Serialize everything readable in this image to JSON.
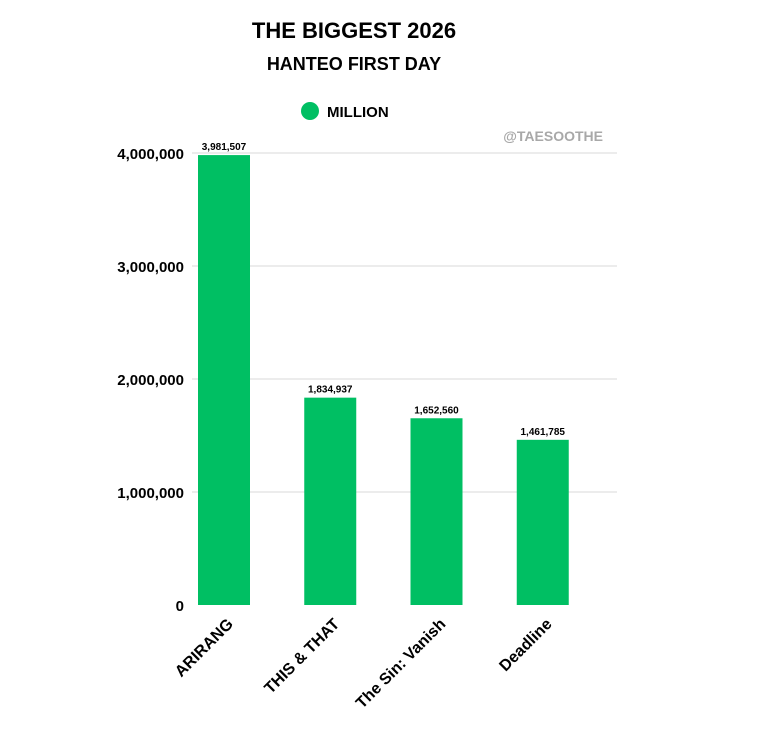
{
  "chart_data": {
    "type": "bar",
    "title": "THE BIGGEST 2026",
    "subtitle": "HANTEO FIRST DAY",
    "xlabel": "",
    "ylabel": "",
    "watermark": "@TAESOOTHE",
    "legend_position": "top",
    "categories": [
      "ARIRANG",
      "THIS & THAT",
      "The Sin: Vanish",
      "Deadline"
    ],
    "series": [
      {
        "name": "MILLION",
        "color": "#00bf63",
        "values": [
          3981507,
          1834937,
          1652560,
          1461785
        ],
        "labels": [
          "3,981,507",
          "1,834,937",
          "1,652,560",
          "1,461,785"
        ]
      }
    ],
    "yticks": [
      0,
      1000000,
      2000000,
      3000000,
      4000000
    ],
    "ytick_labels": [
      "0",
      "1,000,000",
      "2,000,000",
      "3,000,000",
      "4,000,000"
    ],
    "ylim": [
      0,
      4000000
    ],
    "grid": true
  }
}
